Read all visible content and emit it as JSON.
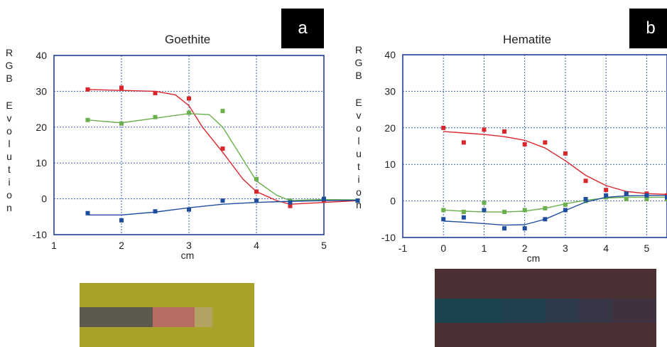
{
  "chart_data": [
    {
      "type": "scatter",
      "panel_label": "a",
      "title": "Goethite",
      "ylabel": "RGB Evolution",
      "xlabel": "cm",
      "xlim": [
        1,
        5
      ],
      "ylim": [
        -10,
        40
      ],
      "xticks": [
        1,
        2,
        3,
        4,
        5
      ],
      "yticks": [
        -10,
        0,
        10,
        20,
        30,
        40
      ],
      "grid": true,
      "series": [
        {
          "color": "#d9262b",
          "x": [
            1.5,
            2.0,
            2.5,
            3.0,
            3.5,
            4.0,
            4.5,
            5.0,
            5.5
          ],
          "y": [
            30.5,
            31.0,
            29.5,
            28.0,
            14.0,
            2.0,
            -2.0,
            -0.5,
            -0.5
          ],
          "fit_x": [
            1.5,
            2.5,
            2.8,
            3.0,
            3.2,
            3.5,
            3.8,
            4.0,
            4.3,
            4.5,
            5.0,
            5.5
          ],
          "fit_y": [
            30.5,
            30.0,
            29.0,
            26.0,
            20.0,
            13.0,
            5.5,
            2.0,
            -0.5,
            -1.5,
            -1.0,
            -0.5
          ]
        },
        {
          "color": "#6ab04c",
          "x": [
            1.5,
            2.0,
            2.5,
            3.0,
            3.5,
            4.0,
            4.5,
            5.0,
            5.5
          ],
          "y": [
            22.0,
            21.0,
            22.8,
            24.0,
            24.5,
            5.5,
            -0.5,
            0.0,
            -0.5
          ],
          "fit_x": [
            1.5,
            2.0,
            2.5,
            3.0,
            3.3,
            3.5,
            3.8,
            4.0,
            4.3,
            4.5,
            5.0,
            5.5
          ],
          "fit_y": [
            22.0,
            21.2,
            22.5,
            23.8,
            23.5,
            20.0,
            11.0,
            5.0,
            1.0,
            -0.5,
            -0.2,
            -0.3
          ]
        },
        {
          "color": "#1f4e9e",
          "x": [
            1.5,
            2.0,
            2.5,
            3.0,
            3.5,
            4.0,
            4.5,
            5.0,
            5.5
          ],
          "y": [
            -4.0,
            -6.0,
            -3.5,
            -3.0,
            -0.5,
            -0.5,
            -1.0,
            0.0,
            -0.5
          ],
          "fit_x": [
            1.5,
            2.0,
            2.5,
            3.0,
            3.5,
            4.0,
            4.5,
            5.0,
            5.5
          ],
          "fit_y": [
            -4.5,
            -4.5,
            -3.7,
            -2.5,
            -1.5,
            -1.0,
            -0.7,
            -0.5,
            -0.4
          ]
        }
      ],
      "swatch": {
        "background": "#a8a22a",
        "segments": [
          {
            "color": "#5c5a4e",
            "from": 0.0,
            "to": 0.42
          },
          {
            "color": "#b86b61",
            "from": 0.42,
            "to": 0.66
          },
          {
            "color": "#b3a363",
            "from": 0.66,
            "to": 0.76
          }
        ]
      }
    },
    {
      "type": "scatter",
      "panel_label": "b",
      "title": "Hematite",
      "ylabel": "RGB Evolution",
      "xlabel": "cm",
      "xlim": [
        -1,
        5.5
      ],
      "ylim": [
        -10,
        40
      ],
      "xticks": [
        -1,
        0,
        1,
        2,
        3,
        4,
        5
      ],
      "yticks": [
        -10,
        0,
        10,
        20,
        30,
        40
      ],
      "grid": true,
      "series": [
        {
          "color": "#d9262b",
          "x": [
            0.0,
            0.5,
            1.0,
            1.5,
            2.0,
            2.5,
            3.0,
            3.5,
            4.0,
            4.5,
            5.0,
            5.5
          ],
          "y": [
            20.0,
            16.0,
            19.5,
            19.0,
            15.5,
            16.0,
            13.0,
            5.5,
            3.0,
            2.0,
            2.0,
            1.5
          ],
          "fit_x": [
            0.0,
            0.5,
            1.0,
            1.5,
            2.0,
            2.5,
            3.0,
            3.5,
            4.0,
            4.5,
            5.0,
            5.5
          ],
          "fit_y": [
            19.0,
            18.6,
            18.2,
            17.6,
            16.6,
            14.5,
            11.0,
            7.0,
            4.2,
            2.6,
            2.0,
            1.8
          ]
        },
        {
          "color": "#6ab04c",
          "x": [
            0.0,
            0.5,
            1.0,
            1.5,
            2.0,
            2.5,
            3.0,
            3.5,
            4.0,
            4.5,
            5.0,
            5.5
          ],
          "y": [
            -2.5,
            -3.0,
            -0.5,
            -3.0,
            -2.5,
            -2.0,
            -1.0,
            0.0,
            1.0,
            0.5,
            0.5,
            0.5
          ],
          "fit_x": [
            0.0,
            0.5,
            1.0,
            1.5,
            2.0,
            2.5,
            3.0,
            3.5,
            4.0,
            4.5,
            5.0,
            5.5
          ],
          "fit_y": [
            -2.5,
            -2.8,
            -3.0,
            -3.0,
            -2.8,
            -2.0,
            -0.8,
            0.2,
            0.8,
            1.0,
            1.0,
            1.0
          ]
        },
        {
          "color": "#1f4e9e",
          "x": [
            0.0,
            0.5,
            1.0,
            1.5,
            2.0,
            2.5,
            3.0,
            3.5,
            4.0,
            4.5,
            5.0,
            5.5
          ],
          "y": [
            -5.0,
            -4.5,
            -2.5,
            -7.5,
            -7.5,
            -5.0,
            -2.5,
            0.5,
            1.5,
            2.0,
            1.5,
            1.0
          ],
          "fit_x": [
            0.0,
            0.5,
            1.0,
            1.5,
            2.0,
            2.5,
            3.0,
            3.5,
            4.0,
            4.5,
            5.0,
            5.5
          ],
          "fit_y": [
            -5.5,
            -5.8,
            -6.2,
            -6.6,
            -6.5,
            -5.0,
            -2.6,
            -0.3,
            1.0,
            1.4,
            1.5,
            1.5
          ]
        }
      ],
      "swatch": {
        "background": "#4a2f33",
        "segments": [
          {
            "color": "#1b4450",
            "from": 0.0,
            "to": 0.3
          },
          {
            "color": "#22404f",
            "from": 0.3,
            "to": 0.5
          },
          {
            "color": "#2c3a4a",
            "from": 0.5,
            "to": 0.65
          },
          {
            "color": "#373646",
            "from": 0.65,
            "to": 0.8
          },
          {
            "color": "#3f3140",
            "from": 0.8,
            "to": 1.0
          }
        ]
      }
    }
  ]
}
